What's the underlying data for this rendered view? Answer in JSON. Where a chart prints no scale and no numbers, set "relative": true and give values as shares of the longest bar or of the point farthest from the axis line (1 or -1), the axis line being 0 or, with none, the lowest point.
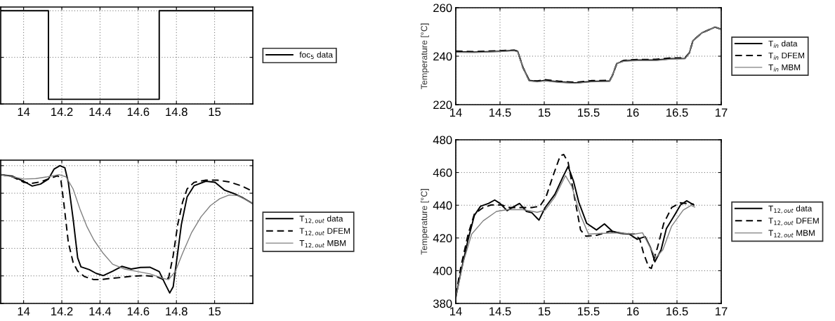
{
  "chart_data": [
    {
      "type": "step",
      "relative": true,
      "xlim": [
        13.88,
        15.2
      ],
      "xticks": [
        14,
        14.2,
        14.4,
        14.6,
        14.8,
        15
      ],
      "tick_labels": "x",
      "grid": true,
      "legend": "right",
      "series": [
        {
          "name": "foc$_{5}$ data",
          "color": "#000000",
          "line_style": "solid",
          "x": [
            13.88,
            14.13,
            14.71,
            15.2
          ],
          "values": [
            1,
            0.05,
            1,
            1
          ]
        }
      ]
    },
    {
      "type": "line",
      "ylabel": "Temperature [°C]",
      "xlim": [
        14,
        17
      ],
      "xticks": [
        14,
        14.5,
        15,
        15.5,
        16,
        16.5,
        17
      ],
      "ylim": [
        220,
        260
      ],
      "yticks": [
        220,
        240,
        260
      ],
      "grid": true,
      "legend": "right",
      "series": [
        {
          "name": "T$_{in}$ data",
          "color": "#000000",
          "line_style": "solid",
          "x": [
            14.0,
            14.21,
            14.46,
            14.66,
            14.7,
            14.76,
            14.83,
            14.92,
            15.01,
            15.16,
            15.35,
            15.53,
            15.74,
            15.77,
            15.82,
            15.9,
            16.05,
            16.26,
            16.44,
            16.59,
            16.64,
            16.68,
            16.78,
            16.93,
            17.0
          ],
          "values": [
            241.8,
            241.7,
            242.0,
            242.4,
            242.0,
            235.3,
            230.0,
            229.6,
            230.0,
            229.4,
            229.0,
            229.6,
            229.8,
            232.0,
            237.0,
            238.1,
            238.4,
            238.4,
            239.0,
            239.1,
            241.4,
            246.4,
            249.6,
            252.0,
            251.1
          ]
        },
        {
          "name": "T$_{in}$ DFEM",
          "color": "#000000",
          "line_style": "dashed",
          "x": [
            14.0,
            14.21,
            14.46,
            14.66,
            14.7,
            14.76,
            14.83,
            14.92,
            15.01,
            15.16,
            15.35,
            15.53,
            15.74,
            15.77,
            15.82,
            15.9,
            16.05,
            16.26,
            16.44,
            16.59,
            16.64,
            16.68,
            16.78,
            16.93,
            17.0
          ],
          "values": [
            242.1,
            241.9,
            242.2,
            242.5,
            242.0,
            235.3,
            230.0,
            229.8,
            230.3,
            229.7,
            229.2,
            229.9,
            230.0,
            232.0,
            237.0,
            238.3,
            238.6,
            238.7,
            239.3,
            239.3,
            241.4,
            246.4,
            249.6,
            252.0,
            251.1
          ]
        },
        {
          "name": "T$_{in}$ MBM",
          "color": "#808080",
          "line_style": "solid",
          "x": [
            14.0,
            14.21,
            14.46,
            14.66,
            14.7,
            14.76,
            14.83,
            14.92,
            15.01,
            15.16,
            15.35,
            15.53,
            15.74,
            15.77,
            15.82,
            15.9,
            16.05,
            16.26,
            16.44,
            16.59,
            16.64,
            16.68,
            16.78,
            16.93,
            17.0
          ],
          "values": [
            241.6,
            241.5,
            241.8,
            242.2,
            241.8,
            235.3,
            229.8,
            229.4,
            229.8,
            229.2,
            228.8,
            229.4,
            229.6,
            232.0,
            237.0,
            237.9,
            238.2,
            238.2,
            238.8,
            238.9,
            241.4,
            246.4,
            249.6,
            252.0,
            251.1
          ]
        }
      ]
    },
    {
      "type": "line",
      "relative": true,
      "xlim": [
        13.88,
        15.2
      ],
      "xticks": [
        14,
        14.2,
        14.4,
        14.6,
        14.8,
        15
      ],
      "tick_labels": "x",
      "grid": true,
      "legend": "right",
      "series": [
        {
          "name": "T$_{12,out}$ data",
          "color": "#000000",
          "line_style": "solid",
          "x": [
            13.88,
            13.94,
            14.0,
            14.045,
            14.088,
            14.13,
            14.16,
            14.19,
            14.216,
            14.234,
            14.26,
            14.283,
            14.3,
            14.344,
            14.38,
            14.417,
            14.466,
            14.515,
            14.563,
            14.612,
            14.661,
            14.71,
            14.74,
            14.765,
            14.783,
            14.8,
            14.826,
            14.856,
            14.893,
            14.954,
            15.002,
            15.051,
            15.1,
            15.149,
            15.198
          ],
          "values": [
            0.935,
            0.924,
            0.887,
            0.852,
            0.866,
            0.903,
            0.976,
            1.0,
            0.984,
            0.879,
            0.605,
            0.331,
            0.266,
            0.245,
            0.218,
            0.202,
            0.234,
            0.269,
            0.25,
            0.261,
            0.263,
            0.231,
            0.145,
            0.076,
            0.121,
            0.298,
            0.573,
            0.774,
            0.855,
            0.887,
            0.879,
            0.823,
            0.798,
            0.766,
            0.726
          ]
        },
        {
          "name": "T$_{12,out}$ DFEM",
          "color": "#000000",
          "line_style": "dashed",
          "x": [
            13.88,
            13.941,
            14.002,
            14.039,
            14.088,
            14.137,
            14.179,
            14.195,
            14.21,
            14.234,
            14.259,
            14.283,
            14.32,
            14.368,
            14.405,
            14.454,
            14.515,
            14.563,
            14.637,
            14.698,
            14.734,
            14.759,
            14.783,
            14.807,
            14.832,
            14.856,
            14.893,
            14.954,
            15.015,
            15.076,
            15.137,
            15.198
          ],
          "values": [
            0.935,
            0.919,
            0.879,
            0.871,
            0.882,
            0.908,
            0.927,
            0.895,
            0.734,
            0.444,
            0.298,
            0.234,
            0.194,
            0.173,
            0.173,
            0.182,
            0.189,
            0.198,
            0.202,
            0.194,
            0.173,
            0.185,
            0.347,
            0.573,
            0.734,
            0.831,
            0.879,
            0.895,
            0.895,
            0.882,
            0.855,
            0.815
          ]
        },
        {
          "name": "T$_{12,out}$ MBM",
          "color": "#808080",
          "line_style": "solid",
          "x": [
            13.88,
            13.941,
            14.002,
            14.063,
            14.124,
            14.185,
            14.222,
            14.259,
            14.295,
            14.332,
            14.368,
            14.417,
            14.466,
            14.527,
            14.588,
            14.661,
            14.722,
            14.759,
            14.795,
            14.832,
            14.88,
            14.929,
            14.978,
            15.027,
            15.076,
            15.124,
            15.198
          ],
          "values": [
            0.935,
            0.919,
            0.903,
            0.906,
            0.919,
            0.935,
            0.919,
            0.831,
            0.685,
            0.556,
            0.46,
            0.363,
            0.285,
            0.25,
            0.234,
            0.215,
            0.185,
            0.173,
            0.234,
            0.363,
            0.516,
            0.629,
            0.71,
            0.76,
            0.787,
            0.782,
            0.726
          ]
        }
      ]
    },
    {
      "type": "line",
      "ylabel": "Temperature [°C]",
      "xlim": [
        14,
        17
      ],
      "xticks": [
        14,
        14.5,
        15,
        15.5,
        16,
        16.5,
        17
      ],
      "ylim": [
        380,
        480
      ],
      "yticks": [
        380,
        400,
        420,
        440,
        460,
        480
      ],
      "grid": true,
      "legend": "right",
      "series": [
        {
          "name": "T$_{12,out}$ data",
          "color": "#000000",
          "line_style": "solid",
          "x": [
            14.0,
            14.06,
            14.14,
            14.21,
            14.28,
            14.37,
            14.44,
            14.5,
            14.58,
            14.64,
            14.72,
            14.8,
            14.86,
            14.94,
            15.01,
            15.12,
            15.21,
            15.27,
            15.33,
            15.39,
            15.48,
            15.59,
            15.68,
            15.77,
            15.86,
            15.96,
            16.05,
            16.14,
            16.2,
            16.25,
            16.32,
            16.38,
            16.48,
            16.54,
            16.61,
            16.69
          ],
          "values": [
            383.6,
            399.8,
            419.2,
            433.8,
            439.4,
            441.1,
            443.2,
            441.1,
            436.7,
            438.6,
            441.1,
            436.2,
            435.4,
            430.9,
            438.6,
            446.7,
            457.2,
            463.7,
            454.8,
            441.9,
            428.9,
            424.9,
            428.6,
            424.1,
            422.8,
            422.4,
            419.2,
            420.8,
            414.3,
            405.4,
            412.7,
            425.7,
            434.6,
            440.2,
            442.7,
            440.2
          ]
        },
        {
          "name": "T$_{12,out}$ DFEM",
          "color": "#000000",
          "line_style": "dashed",
          "x": [
            14.0,
            14.06,
            14.14,
            14.21,
            14.31,
            14.4,
            14.52,
            14.61,
            14.73,
            14.86,
            14.95,
            15.02,
            15.1,
            15.18,
            15.22,
            15.27,
            15.33,
            15.41,
            15.47,
            15.59,
            15.74,
            15.89,
            16.02,
            16.08,
            16.12,
            16.18,
            16.21,
            16.28,
            16.35,
            16.44,
            16.54,
            16.69
          ],
          "values": [
            385.2,
            403.0,
            422.4,
            434.6,
            438.6,
            440.2,
            440.2,
            438.6,
            438.6,
            438.6,
            439.4,
            445.1,
            458.1,
            470.2,
            471.0,
            466.2,
            448.3,
            424.9,
            421.1,
            421.6,
            424.1,
            422.8,
            422.4,
            419.2,
            411.1,
            402.2,
            401.4,
            414.3,
            428.9,
            438.6,
            441.5,
            440.6
          ]
        },
        {
          "name": "T$_{12,out}$ MBM",
          "color": "#808080",
          "line_style": "solid",
          "x": [
            14.0,
            14.09,
            14.18,
            14.31,
            14.46,
            14.58,
            14.76,
            14.92,
            15.01,
            15.12,
            15.24,
            15.31,
            15.41,
            15.5,
            15.65,
            15.83,
            16.02,
            16.11,
            16.18,
            16.26,
            16.34,
            16.44,
            16.57,
            16.66,
            16.7
          ],
          "values": [
            383.6,
            406.2,
            422.4,
            430.5,
            436.2,
            437.3,
            437.3,
            435.7,
            437.0,
            445.1,
            458.1,
            451.6,
            433.8,
            422.4,
            422.8,
            423.1,
            422.4,
            423.2,
            416.0,
            407.9,
            412.7,
            427.3,
            437.0,
            439.9,
            438.9
          ]
        }
      ]
    }
  ]
}
